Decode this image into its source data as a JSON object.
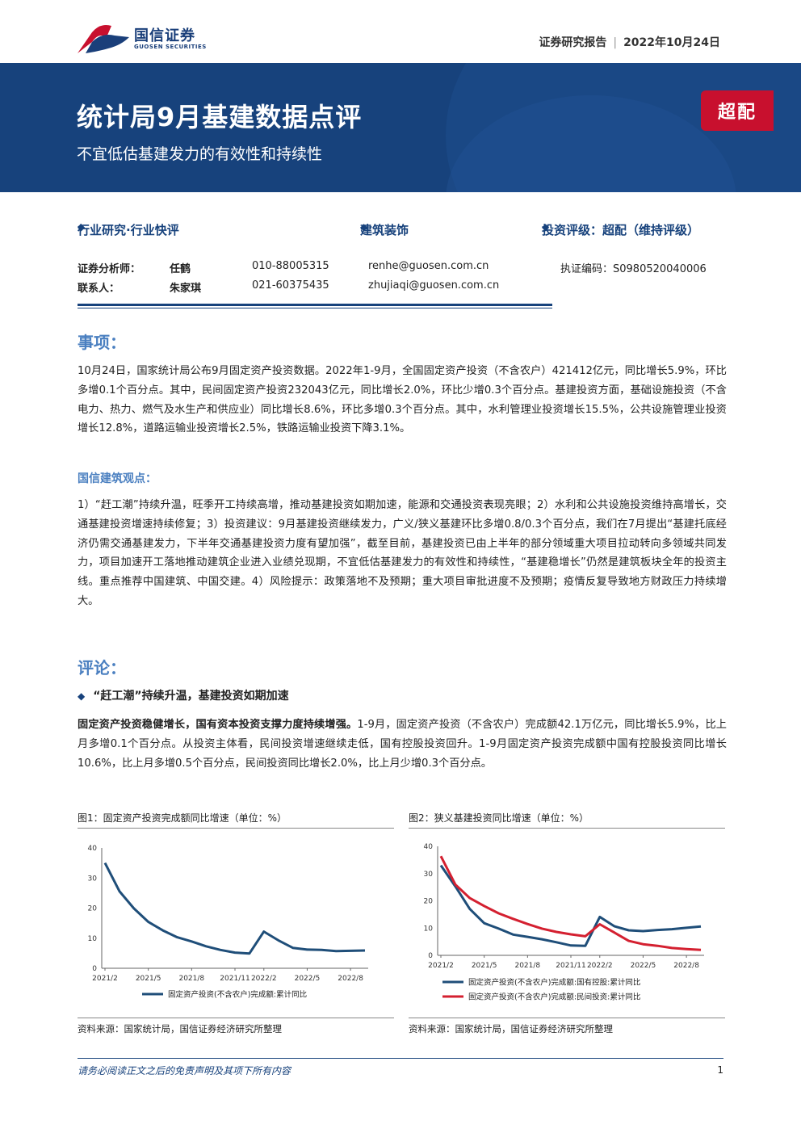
{
  "header": {
    "logo_cn": "国信证券",
    "logo_en": "GUOSEN SECURITIES",
    "report_type": "证券研究报告",
    "date": "2022年10月24日"
  },
  "banner": {
    "title": "统计局9月基建数据点评",
    "subtitle": "不宜低估基建发力的有效性和持续性",
    "rating": "超配"
  },
  "info": {
    "category": "行业研究·行业快评",
    "industry": "建筑装饰",
    "rating": "投资评级：超配（维持评级）"
  },
  "analysts": [
    {
      "label": "证券分析师：",
      "name": "任鹤",
      "phone": "010-88005315",
      "email": "renhe@guosen.com.cn",
      "cert": "执证编码：S0980520040006"
    },
    {
      "label": "联系人：",
      "name": "朱家琪",
      "phone": "021-60375435",
      "email": "zhujiaqi@guosen.com.cn",
      "cert": ""
    }
  ],
  "sections": {
    "event_heading": "事项：",
    "event_text": "10月24日，国家统计局公布9月固定资产投资数据。2022年1-9月，全国固定资产投资（不含农户）421412亿元，同比增长5.9%，环比多增0.1个百分点。其中，民间固定资产投资232043亿元，同比增长2.0%，环比少增0.3个百分点。基建投资方面，基础设施投资（不含电力、热力、燃气及水生产和供应业）同比增长8.6%，环比多增0.3个百分点。其中，水利管理业投资增长15.5%，公共设施管理业投资增长12.8%，道路运输业投资增长2.5%，铁路运输业投资下降3.1%。",
    "view_heading": "国信建筑观点：",
    "view_text": "1）“赶工潮”持续升温，旺季开工持续高增，推动基建投资如期加速，能源和交通投资表现亮眼；2）水利和公共设施投资维持高增长，交通基建投资增速持续修复；3）投资建议：9月基建投资继续发力，广义/狭义基建环比多增0.8/0.3个百分点，我们在7月提出“基建托底经济仍需交通基建发力，下半年交通基建投资力度有望加强”，截至目前，基建投资已由上半年的部分领域重大项目拉动转向多领域共同发力，项目加速开工落地推动建筑企业进入业绩兑现期，不宜低估基建发力的有效性和持续性，“基建稳增长”仍然是建筑板块全年的投资主线。重点推荐中国建筑、中国交建。4）风险提示：政策落地不及预期；重大项目审批进度不及预期；疫情反复导致地方财政压力持续增大。",
    "comment_heading": "评论：",
    "bullet1": "“赶工潮”持续升温，基建投资如期加速",
    "para_lead": "固定资产投资稳健增长，国有资本投资支撑力度持续增强。",
    "para_rest": "1-9月，固定资产投资（不含农户）完成额42.1万亿元，同比增长5.9%，比上月多增0.1个百分点。从投资主体看，民间投资增速继续走低，国有控股投资回升。1-9月固定资产投资完成额中国有控股投资同比增长10.6%，比上月多增0.5个百分点，民间投资同比增长2.0%，比上月少增0.3个百分点。"
  },
  "figures": {
    "fig1_title": "图1：固定资产投资完成额同比增速（单位：%）",
    "fig1_source": "资料来源：国家统计局，国信证券经济研究所整理",
    "fig2_title": "图2：狭义基建投资同比增速（单位：%）",
    "fig2_source": "资料来源：国家统计局，国信证券经济研究所整理"
  },
  "chart_data": [
    {
      "type": "line",
      "title": "图1：固定资产投资完成额同比增速（单位：%）",
      "ylim": [
        0,
        40
      ],
      "yticks": [
        "0",
        "10",
        "20",
        "30",
        "40"
      ],
      "xticks": [
        "2021/2",
        "2021/5",
        "2021/8",
        "2021/11",
        "2022/2",
        "2022/5",
        "2022/8"
      ],
      "x": [
        "2021/2",
        "2021/3",
        "2021/4",
        "2021/5",
        "2021/6",
        "2021/7",
        "2021/8",
        "2021/9",
        "2021/10",
        "2021/11",
        "2021/12",
        "2022/2",
        "2022/3",
        "2022/4",
        "2022/5",
        "2022/6",
        "2022/7",
        "2022/8",
        "2022/9"
      ],
      "series": [
        {
          "name": "固定资产投资(不含农户)完成额:累计同比",
          "color": "#1f4e79",
          "values": [
            35.0,
            25.6,
            19.9,
            15.4,
            12.6,
            10.3,
            8.9,
            7.3,
            6.1,
            5.2,
            4.9,
            12.2,
            9.3,
            6.8,
            6.2,
            6.1,
            5.7,
            5.8,
            5.9
          ]
        }
      ]
    },
    {
      "type": "line",
      "title": "图2：狭义基建投资同比增速（单位：%）",
      "ylim": [
        0,
        40
      ],
      "yticks": [
        "0",
        "10",
        "20",
        "30",
        "40"
      ],
      "xticks": [
        "2021/2",
        "2021/5",
        "2021/8",
        "2021/11",
        "2022/2",
        "2022/5",
        "2022/8"
      ],
      "x": [
        "2021/2",
        "2021/3",
        "2021/4",
        "2021/5",
        "2021/6",
        "2021/7",
        "2021/8",
        "2021/9",
        "2021/10",
        "2021/11",
        "2021/12",
        "2022/2",
        "2022/3",
        "2022/4",
        "2022/5",
        "2022/6",
        "2022/7",
        "2022/8",
        "2022/9"
      ],
      "series": [
        {
          "name": "固定资产投资(不含农户)完成额:国有控股:累计同比",
          "color": "#1f4e79",
          "values": [
            33.0,
            25.3,
            17.0,
            11.8,
            9.8,
            7.6,
            6.8,
            5.9,
            4.8,
            3.6,
            3.5,
            14.1,
            10.7,
            9.2,
            8.9,
            9.3,
            9.6,
            10.1,
            10.6
          ]
        },
        {
          "name": "固定资产投资(不含农户)完成额:民间投资:累计同比",
          "color": "#d42030",
          "values": [
            36.4,
            26.0,
            21.0,
            18.1,
            15.4,
            13.4,
            11.5,
            9.8,
            8.6,
            7.7,
            7.0,
            11.4,
            8.4,
            5.3,
            4.1,
            3.5,
            2.7,
            2.3,
            2.0
          ]
        }
      ]
    }
  ],
  "footer": {
    "note": "请务必阅读正文之后的免责声明及其项下所有内容",
    "page": "1"
  }
}
